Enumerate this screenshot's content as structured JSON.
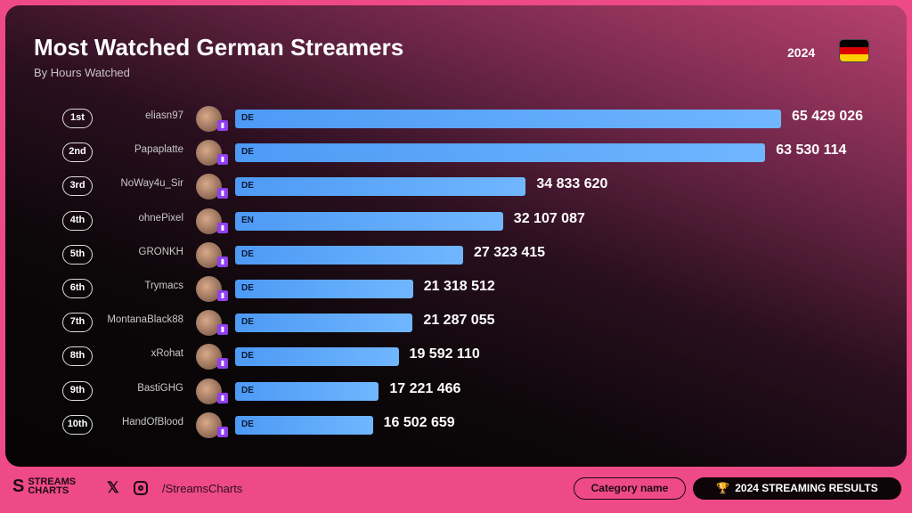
{
  "header": {
    "title": "Most Watched German Streamers",
    "subtitle": "By Hours Watched",
    "year": "2024",
    "flag_colors": [
      "#000000",
      "#dd0000",
      "#ffce00"
    ]
  },
  "chart_data": {
    "type": "bar",
    "orientation": "horizontal",
    "title": "Most Watched German Streamers",
    "subtitle": "By Hours Watched",
    "xlim": [
      0,
      65429026
    ],
    "categories": [
      "eliasn97",
      "Papaplatte",
      "NoWay4u_Sir",
      "ohnePixel",
      "GRONKH",
      "Trymacs",
      "MontanaBlack88",
      "xRohat",
      "BastiGHG",
      "HandOfBlood"
    ],
    "rows": [
      {
        "rank": "1st",
        "name": "eliasn97",
        "lang": "DE",
        "value": 65429026,
        "label": "65 429 026"
      },
      {
        "rank": "2nd",
        "name": "Papaplatte",
        "lang": "DE",
        "value": 63530114,
        "label": "63 530 114"
      },
      {
        "rank": "3rd",
        "name": "NoWay4u_Sir",
        "lang": "DE",
        "value": 34833620,
        "label": "34 833 620"
      },
      {
        "rank": "4th",
        "name": "ohnePixel",
        "lang": "EN",
        "value": 32107087,
        "label": "32 107 087"
      },
      {
        "rank": "5th",
        "name": "GRONKH",
        "lang": "DE",
        "value": 27323415,
        "label": "27 323 415"
      },
      {
        "rank": "6th",
        "name": "Trymacs",
        "lang": "DE",
        "value": 21318512,
        "label": "21 318 512"
      },
      {
        "rank": "7th",
        "name": "MontanaBlack88",
        "lang": "DE",
        "value": 21287055,
        "label": "21 287 055"
      },
      {
        "rank": "8th",
        "name": "xRohat",
        "lang": "DE",
        "value": 19592110,
        "label": "19 592 110"
      },
      {
        "rank": "9th",
        "name": "BastiGHG",
        "lang": "DE",
        "value": 17221466,
        "label": "17 221 466"
      },
      {
        "rank": "10th",
        "name": "HandOfBlood",
        "lang": "DE",
        "value": 16502659,
        "label": "16 502 659"
      }
    ],
    "bar_color": "#5ea8fb",
    "platform": "twitch"
  },
  "footer": {
    "logo_line1": "STREAMS",
    "logo_line2": "CHARTS",
    "social_icons": [
      "x-icon",
      "instagram-icon"
    ],
    "handle": "/StreamsCharts",
    "category_button": "Category name",
    "results_button": "2024 STREAMING RESULTS"
  }
}
